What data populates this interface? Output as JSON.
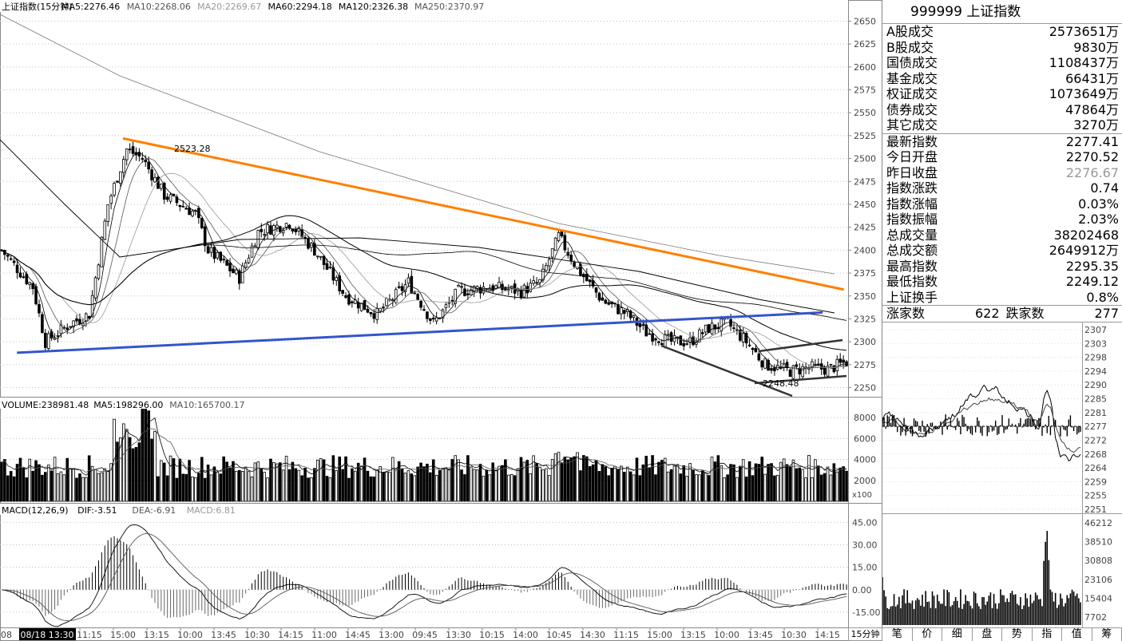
{
  "main": {
    "legend": [
      {
        "text": "上证指数(15分钟)",
        "color": "#000000"
      },
      {
        "text": "MA5:2276.46",
        "color": "#000000"
      },
      {
        "text": "MA10:2268.06",
        "color": "#555555"
      },
      {
        "text": "MA20:2269.67",
        "color": "#999999"
      },
      {
        "text": "MA60:2294.18",
        "color": "#000000"
      },
      {
        "text": "MA120:2326.38",
        "color": "#000000"
      },
      {
        "text": "MA250:2370.97",
        "color": "#555555"
      }
    ],
    "axis_labels": [
      "2650",
      "2625",
      "2600",
      "2575",
      "2550",
      "2525",
      "2500",
      "2475",
      "2450",
      "2425",
      "2400",
      "2375",
      "2350",
      "2325",
      "2300",
      "2275",
      "2250"
    ],
    "high_mark": "2523.28",
    "low_mark": "2248.48"
  },
  "volume": {
    "legend": [
      {
        "text": "VOLUME:238981.48",
        "color": "#000000"
      },
      {
        "text": "MA5:198296.00",
        "color": "#000000"
      },
      {
        "text": "MA10:165700.17",
        "color": "#555555"
      }
    ],
    "axis_labels": [
      "8000",
      "6000",
      "4000",
      "2000"
    ],
    "unit": "x100"
  },
  "macd": {
    "legend": [
      {
        "text": "MACD(12,26,9)",
        "color": "#000000"
      },
      {
        "text": "DIF:-3.51",
        "color": "#000000"
      },
      {
        "text": "DEA:-6.91",
        "color": "#555555"
      },
      {
        "text": "MACD:6.81",
        "color": "#999999"
      }
    ],
    "axis_labels": [
      "45.00",
      "30.00",
      "15.00",
      "0.00",
      "-15.00"
    ]
  },
  "time_axis": {
    "first": "08",
    "selected": "08/18 13:30",
    "labels": [
      "11:15",
      "15:00",
      "13:15",
      "10:00",
      "13:45",
      "10:30",
      "14:15",
      "11:00",
      "14:45",
      "13:00",
      "09:45",
      "13:30",
      "10:15",
      "14:00",
      "10:45",
      "14:30",
      "11:15",
      "15:00",
      "13:15",
      "10:00",
      "13:45",
      "10:30",
      "14:15"
    ]
  },
  "period_label": "15分钟",
  "info": {
    "code": "999999",
    "name": "上证指数",
    "turnover": [
      {
        "label": "A股成交",
        "value": "2573651万"
      },
      {
        "label": "B股成交",
        "value": "9830万"
      },
      {
        "label": "国债成交",
        "value": "1108437万"
      },
      {
        "label": "基金成交",
        "value": "66431万"
      },
      {
        "label": "权证成交",
        "value": "1073649万"
      },
      {
        "label": "债券成交",
        "value": "47864万"
      },
      {
        "label": "其它成交",
        "value": "3270万"
      }
    ],
    "stats": [
      {
        "label": "最新指数",
        "value": "2277.41",
        "dim": false
      },
      {
        "label": "今日开盘",
        "value": "2270.52",
        "dim": false
      },
      {
        "label": "昨日收盘",
        "value": "2276.67",
        "dim": true
      },
      {
        "label": "指数涨跌",
        "value": "0.74",
        "dim": false
      },
      {
        "label": "指数涨幅",
        "value": "0.03%",
        "dim": false
      },
      {
        "label": "指数振幅",
        "value": "2.03%",
        "dim": false
      },
      {
        "label": "总成交量",
        "value": "38202468",
        "dim": false
      },
      {
        "label": "总成交额",
        "value": "2649912万",
        "dim": false
      },
      {
        "label": "最高指数",
        "value": "2295.35",
        "dim": false
      },
      {
        "label": "最低指数",
        "value": "2249.12",
        "dim": false
      },
      {
        "label": "上证换手",
        "value": "0.8%",
        "dim": false
      }
    ],
    "up_label": "涨家数",
    "up_count": "622",
    "down_label": "跌家数",
    "down_count": "277"
  },
  "intraday": {
    "axis_labels": [
      "2307",
      "2303",
      "2298",
      "2294",
      "2290",
      "2285",
      "2281",
      "2277",
      "2272",
      "2268",
      "2264",
      "2259",
      "2255",
      "2251"
    ],
    "vol_labels": [
      "46212",
      "38510",
      "30808",
      "23106",
      "15404",
      "7702"
    ]
  },
  "tabs": [
    "笔",
    "价",
    "细",
    "盘",
    "势",
    "指",
    "值",
    "筹"
  ],
  "chart_data": {
    "type": "candlestick",
    "period": "15分钟",
    "y_range": [
      2240,
      2660
    ],
    "value_points": {
      "high": 2523.28,
      "low": 2248.48
    },
    "ma_latest": {
      "MA5": 2276.46,
      "MA10": 2268.06,
      "MA20": 2269.67,
      "MA60": 2294.18,
      "MA120": 2326.38,
      "MA250": 2370.97
    },
    "volume_latest": 238981.48,
    "macd_latest": {
      "DIF": -3.51,
      "DEA": -6.91,
      "MACD": 6.81
    },
    "trendlines": [
      {
        "color": "#ff7f00",
        "from": [
          0.145,
          2522
        ],
        "to": [
          0.995,
          2357
        ]
      },
      {
        "color": "#3355cc",
        "from": [
          0.02,
          2288
        ],
        "to": [
          0.97,
          2332
        ]
      }
    ]
  },
  "colors": {
    "orange": "#ff7f00",
    "blue": "#3355cc",
    "grid": "#c0c0c0"
  }
}
